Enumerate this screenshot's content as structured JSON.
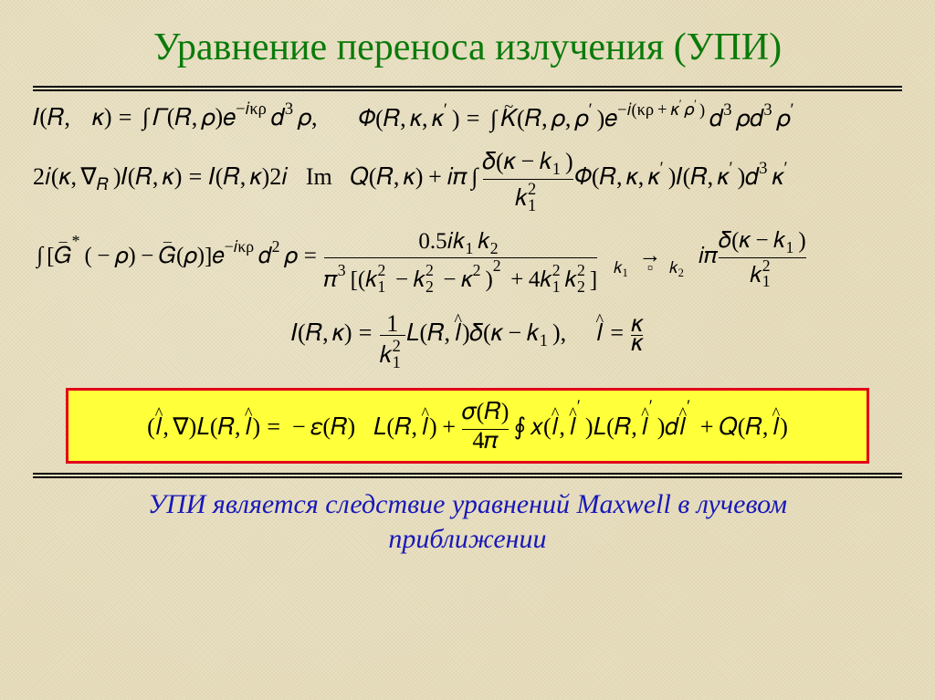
{
  "title": "Уравнение переноса излучения (УПИ)",
  "title_color": "#0a7a0a",
  "title_fontsize": 42,
  "background_color": "#e8dfc0",
  "rule_color": "#000000",
  "highlight": {
    "border_color": "#e2001a",
    "fill_color": "#ffff3a"
  },
  "footer": {
    "text": "УПИ является следствие уравнений Maxwell в лучевом приближении",
    "color": "#1818b8",
    "fontsize": 30,
    "italic": true
  },
  "equations": {
    "eq1_left_label": "I(R, κ) =",
    "eq1_left_integrand": "Γ(R, ρ) e^{−iκρ} d³ρ,",
    "eq1_right_label": "Φ(R, κ, κ′) =",
    "eq1_right_integrand": "K̃(R, ρ, ρ′) e^{−i(κρ+κ′ρ′)} d³ρ d³ρ′",
    "eq2": "2i(κ, ∇_R) I(R, κ) = I(R, κ) 2i Im Q(R, κ) + iπ ∫ [δ(κ−k₁)/k₁²] Φ(R, κ, κ′) I(R, κ′) d³κ′",
    "eq3": "∫[Ḡ*(−ρ) − Ḡ(ρ)] e^{−iκρ} d²ρ = 0.5 i k₁ k₂ / { π³ [ (k₁²−k₂²−κ²)² + 4k₁²k₂² ] }  →_{k₁≫k₂}  iπ δ(κ−k₁)/k₁²",
    "eq4": "I(R, κ) = (1/k₁²) L(R, l̂) δ(κ − k₁),   l̂ = κ/κ",
    "eq5_boxed": "(l̂, ∇) L(R, l̂) = −ε(R) L(R, l̂) + [σ(R)/4π] ∮ x(l̂, l̂′) L(R, l̂′) d l̂′ + Q(R, l̂)"
  },
  "math_fontsize": 26
}
